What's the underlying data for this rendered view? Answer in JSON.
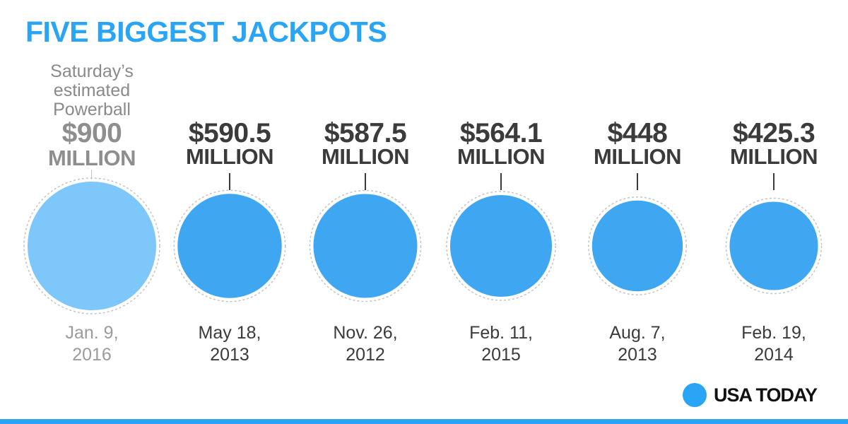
{
  "title": "FIVE BIGGEST JACKPOTS",
  "chart_data": {
    "type": "bubble",
    "unit_label": "MILLION",
    "items": [
      {
        "note": [
          "Saturday’s",
          "estimated",
          "Powerball"
        ],
        "amount_label": "$900",
        "value": 900,
        "date": [
          "Jan. 9,",
          "2016"
        ],
        "estimate": true,
        "color": "#7dc7fa"
      },
      {
        "amount_label": "$590.5",
        "value": 590.5,
        "date": [
          "May 18,",
          "2013"
        ],
        "color": "#3fa7f2"
      },
      {
        "amount_label": "$587.5",
        "value": 587.5,
        "date": [
          "Nov. 26,",
          "2012"
        ],
        "color": "#3fa7f2"
      },
      {
        "amount_label": "$564.1",
        "value": 564.1,
        "date": [
          "Feb. 11,",
          "2015"
        ],
        "color": "#3fa7f2"
      },
      {
        "amount_label": "$448",
        "value": 448,
        "date": [
          "Aug. 7,",
          "2013"
        ],
        "color": "#3fa7f2"
      },
      {
        "amount_label": "$425.3",
        "value": 425.3,
        "date": [
          "Feb. 19,",
          "2014"
        ],
        "color": "#3fa7f2"
      }
    ]
  },
  "footer": {
    "brand": "USA TODAY",
    "accent": "#2aa4f4"
  }
}
